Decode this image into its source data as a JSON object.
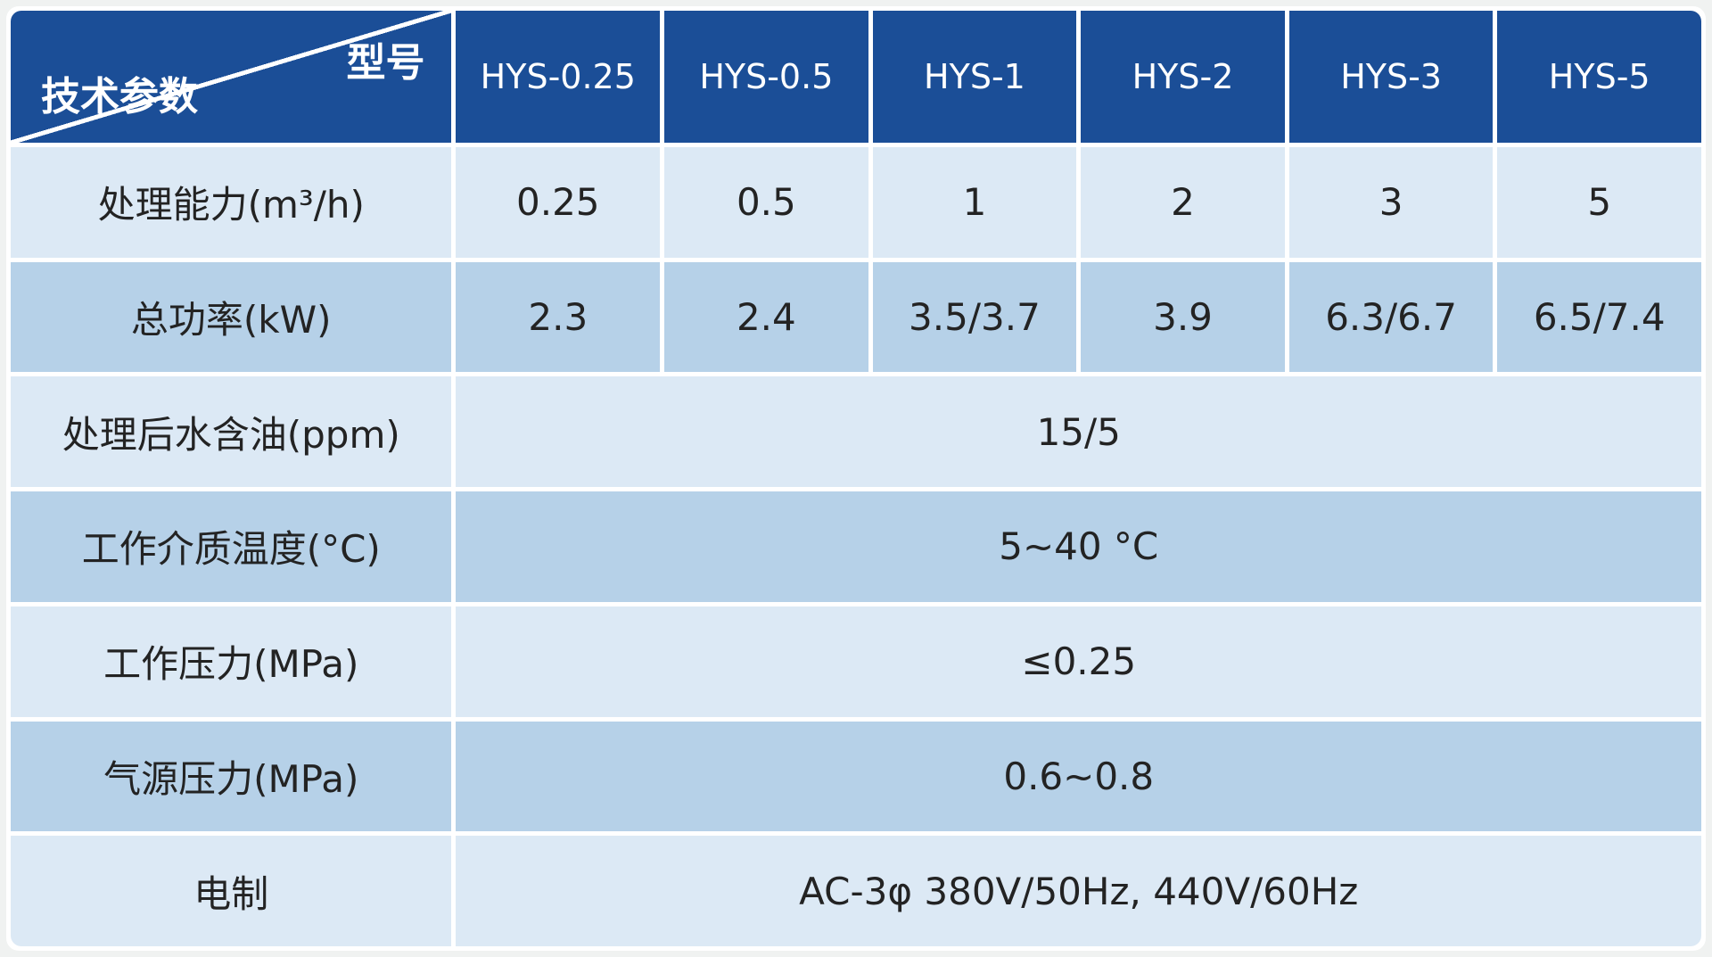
{
  "table": {
    "corner": {
      "top_right_label": "型号",
      "bottom_left_label": "技术参数"
    },
    "model_columns": [
      "HYS-0.25",
      "HYS-0.5",
      "HYS-1",
      "HYS-2",
      "HYS-3",
      "HYS-5"
    ],
    "rows": [
      {
        "label": "处理能力(m³/h)",
        "values": [
          "0.25",
          "0.5",
          "1",
          "2",
          "3",
          "5"
        ]
      },
      {
        "label": "总功率(kW)",
        "values": [
          "2.3",
          "2.4",
          "3.5/3.7",
          "3.9",
          "6.3/6.7",
          "6.5/7.4"
        ]
      },
      {
        "label": "处理后水含油(ppm)",
        "span_value": "15/5"
      },
      {
        "label": "工作介质温度(°C)",
        "span_value": "5~40 °C"
      },
      {
        "label": "工作压力(MPa)",
        "span_value": "≤0.25"
      },
      {
        "label": "气源压力(MPa)",
        "span_value": "0.6~0.8"
      },
      {
        "label": "电制",
        "span_value": "AC-3φ 380V/50Hz, 440V/60Hz"
      }
    ],
    "colors": {
      "header_blue": "#1b4e97",
      "row_light": "#dce9f5",
      "row_dark": "#b6d1e8",
      "cell_gap": "#ffffff",
      "page_background": "#f0f2f1",
      "header_text": "#ffffff",
      "body_text": "#232323"
    }
  }
}
